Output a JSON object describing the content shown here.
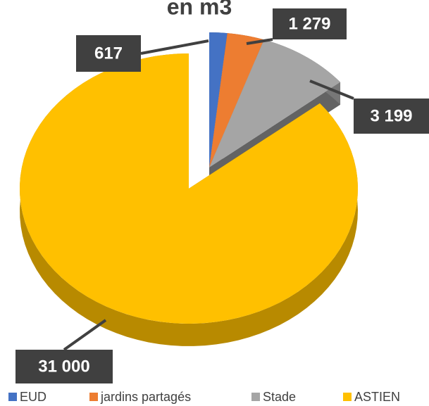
{
  "chart_data": {
    "type": "pie",
    "title": "en m3",
    "categories": [
      "EUD",
      "jardins partagés",
      "Stade",
      "ASTIEN"
    ],
    "values": [
      617,
      1279,
      3199,
      31000
    ],
    "value_labels": [
      "617",
      "1 279",
      "3 199",
      "31 000"
    ],
    "colors": [
      "#4472c4",
      "#ed7d31",
      "#a5a5a5",
      "#ffc000"
    ],
    "legend": "bottom"
  }
}
